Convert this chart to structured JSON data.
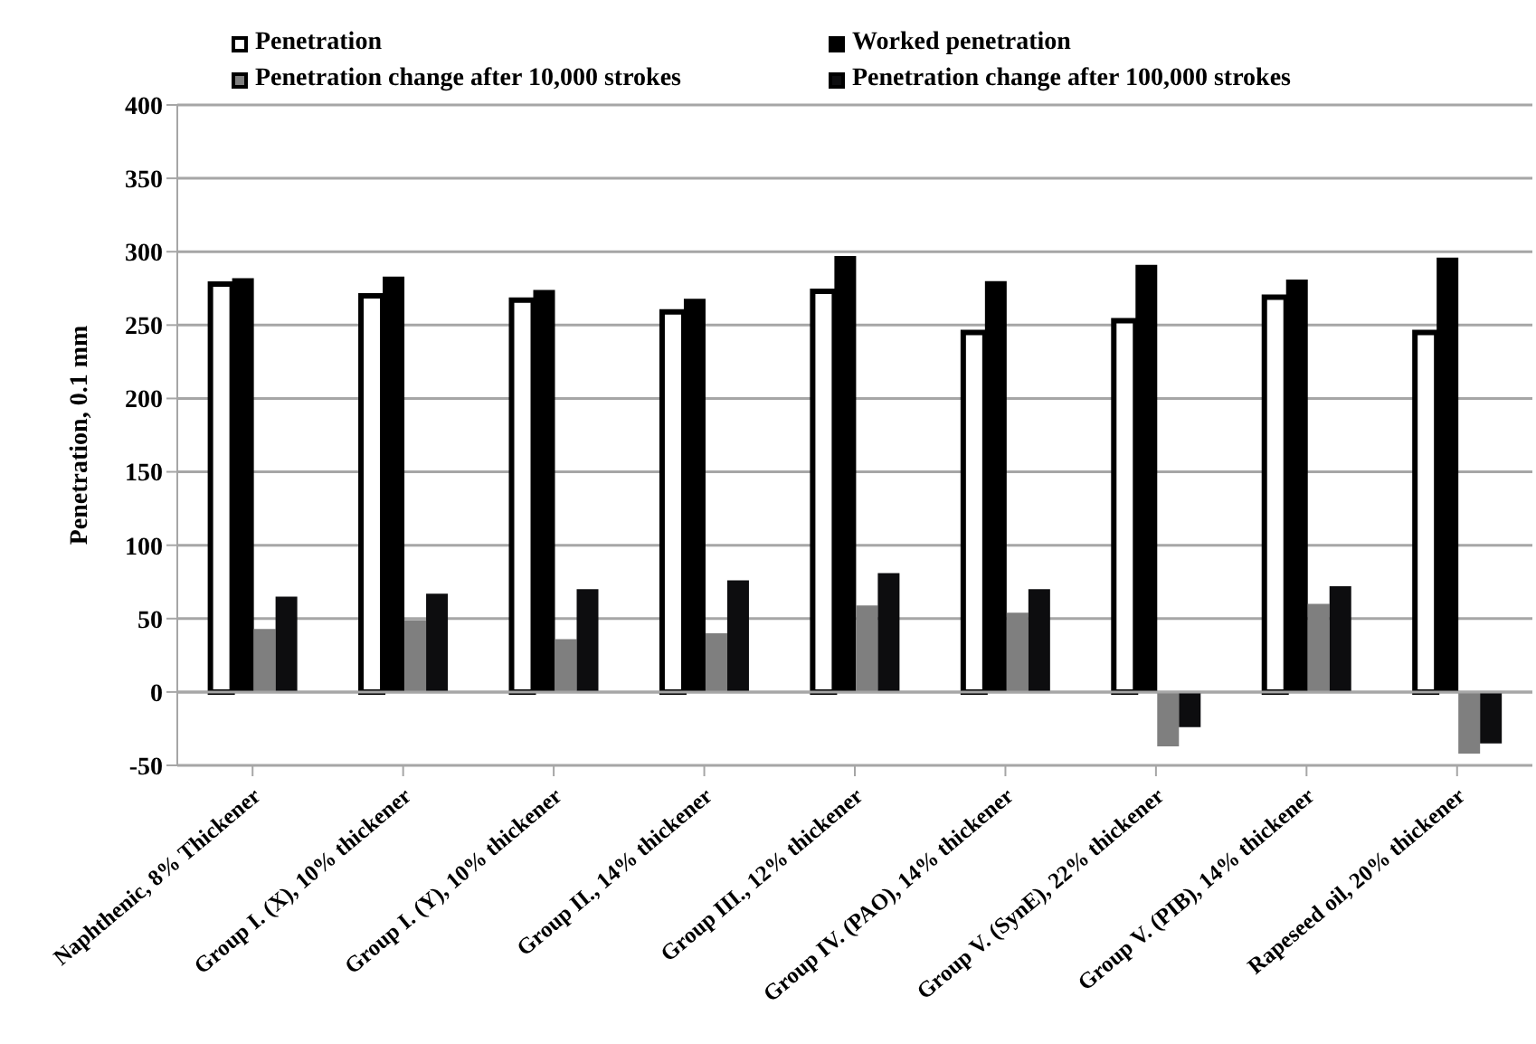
{
  "chart_data": {
    "type": "bar",
    "ylabel": "Penetration, 0.1 mm",
    "categories": [
      "Naphthenic, 8% Thickener",
      "Group I. (X), 10% thickener",
      "Group I. (Y), 10% thickener",
      "Group II., 14% thickener",
      "Group III., 12% thickener",
      "Group IV. (PAO), 14% thickener",
      "Group V. (SynE), 22% thickener",
      "Group V. (PIB), 14% thickener",
      "Rapeseed oil, 20% thickener"
    ],
    "series": [
      {
        "name": "Penetration",
        "color": "#ffffff",
        "values": [
          278,
          270,
          267,
          259,
          273,
          245,
          253,
          269,
          245
        ]
      },
      {
        "name": "Worked penetration",
        "color": "#000000",
        "values": [
          282,
          283,
          274,
          268,
          297,
          280,
          291,
          281,
          296
        ]
      },
      {
        "name": "Penetration change after 10,000 strokes",
        "color": "#7f7f7f",
        "values": [
          43,
          49,
          36,
          40,
          59,
          54,
          -37,
          60,
          -42
        ]
      },
      {
        "name": "Penetration change after 100,000 strokes",
        "color": "#0d0d0f",
        "values": [
          65,
          67,
          70,
          76,
          81,
          70,
          -24,
          72,
          -35
        ]
      }
    ],
    "ylim": [
      -50,
      400
    ],
    "yticks": [
      -50,
      0,
      50,
      100,
      150,
      200,
      250,
      300,
      350,
      400
    ],
    "grid": "y",
    "legend": "top"
  }
}
